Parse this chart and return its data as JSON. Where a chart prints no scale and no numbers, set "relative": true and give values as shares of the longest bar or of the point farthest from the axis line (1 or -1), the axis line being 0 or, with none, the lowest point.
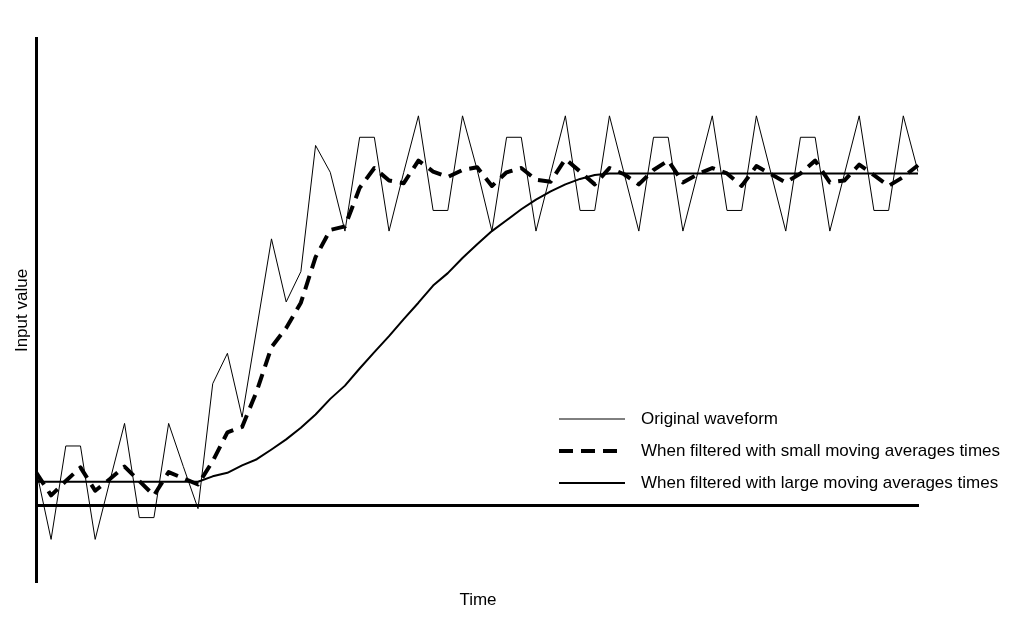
{
  "chart_data": {
    "type": "line",
    "relative": true,
    "xlabel": "Time",
    "ylabel": "Input value",
    "legend": "bottom right",
    "grid": false,
    "marker": "none",
    "categories": [
      null,
      null,
      null,
      null,
      null,
      null,
      null,
      null,
      null,
      null,
      null,
      null,
      null,
      null,
      null,
      null,
      null,
      null,
      null,
      null,
      null,
      null,
      null,
      null,
      null,
      null,
      null,
      null,
      null,
      null,
      null,
      null,
      null,
      null,
      null,
      null,
      null,
      null,
      null,
      null,
      null,
      null,
      null,
      null,
      null,
      null,
      null,
      null,
      null,
      null,
      null,
      null,
      null,
      null,
      null,
      null,
      null,
      null,
      null,
      null,
      null
    ],
    "series": [
      {
        "name": "Original waveform",
        "color": "#000000",
        "line_style": "solid",
        "values": [
          0.088,
          -0.088,
          0.152,
          0.152,
          -0.088,
          0.062,
          0.21,
          -0.032,
          -0.032,
          0.21,
          0.099,
          -0.009,
          0.312,
          0.39,
          0.226,
          0.455,
          0.684,
          0.522,
          0.6,
          0.924,
          0.855,
          0.704,
          0.945,
          0.945,
          0.704,
          0.855,
          1,
          0.757,
          0.757,
          1,
          0.861,
          0.704,
          0.945,
          0.945,
          0.704,
          0.852,
          1,
          0.757,
          0.757,
          1,
          0.852,
          0.704,
          0.945,
          0.945,
          0.704,
          0.852,
          1,
          0.757,
          0.757,
          1,
          0.852,
          0.704,
          0.945,
          0.945,
          0.704,
          0.852,
          1,
          0.757,
          0.757,
          1,
          0.857
        ]
      },
      {
        "name": "When filtered with small moving averages times",
        "color": "#000000",
        "line_style": "dashed",
        "values": [
          0.083,
          0.025,
          0.062,
          0.097,
          0.037,
          0.067,
          0.099,
          0.062,
          0.025,
          0.085,
          0.069,
          0.053,
          0.113,
          0.187,
          0.201,
          0.293,
          0.406,
          0.455,
          0.52,
          0.637,
          0.707,
          0.716,
          0.815,
          0.866,
          0.834,
          0.827,
          0.885,
          0.857,
          0.843,
          0.861,
          0.868,
          0.82,
          0.855,
          0.866,
          0.836,
          0.831,
          0.889,
          0.857,
          0.824,
          0.866,
          0.85,
          0.824,
          0.861,
          0.885,
          0.829,
          0.85,
          0.866,
          0.852,
          0.82,
          0.871,
          0.85,
          0.829,
          0.852,
          0.885,
          0.829,
          0.834,
          0.875,
          0.848,
          0.82,
          0.843,
          0.873
        ]
      },
      {
        "name": "When filtered with large moving averages times",
        "color": "#000000",
        "line_style": "solid",
        "values": [
          0.06,
          0.06,
          0.06,
          0.06,
          0.06,
          0.06,
          0.06,
          0.06,
          0.06,
          0.06,
          0.06,
          0.06,
          0.074,
          0.083,
          0.102,
          0.118,
          0.143,
          0.169,
          0.199,
          0.233,
          0.273,
          0.307,
          0.351,
          0.393,
          0.434,
          0.478,
          0.52,
          0.564,
          0.596,
          0.635,
          0.67,
          0.704,
          0.732,
          0.76,
          0.785,
          0.806,
          0.824,
          0.838,
          0.848,
          0.852,
          0.852,
          0.852,
          0.852,
          0.852,
          0.852,
          0.852,
          0.852,
          0.852,
          0.852,
          0.852,
          0.852,
          0.852,
          0.852,
          0.852,
          0.852,
          0.852,
          0.852,
          0.852,
          0.852,
          0.852,
          0.852
        ]
      }
    ]
  }
}
